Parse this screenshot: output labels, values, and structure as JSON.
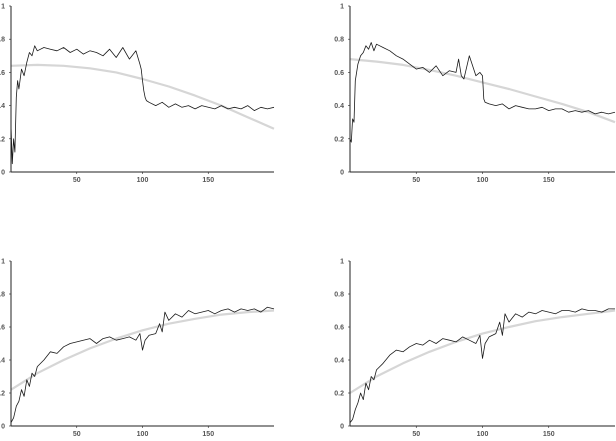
{
  "colors": {
    "series": "#1a1a1a",
    "trend": "#d6d6d6",
    "axis": "#222222",
    "tick_text": "#555555"
  },
  "chart_data": [
    {
      "type": "line",
      "x_range": [
        0,
        200
      ],
      "ylim": [
        0,
        1
      ],
      "xticks": [
        50,
        100,
        150
      ],
      "xtick_labels": [
        "50",
        "100",
        "150"
      ],
      "yticks": [
        0,
        0.2,
        0.4,
        0.6,
        0.8,
        1
      ],
      "ytick_labels": [
        "0",
        "0.2",
        "0.4",
        "0.6",
        "0.8",
        "1"
      ],
      "grid": false,
      "series": [
        {
          "role": "observed",
          "x": [
            0,
            1,
            2,
            3,
            4,
            5,
            6,
            8,
            10,
            12,
            14,
            16,
            18,
            20,
            25,
            30,
            35,
            40,
            45,
            50,
            55,
            60,
            65,
            70,
            75,
            80,
            85,
            90,
            95,
            98,
            99,
            100,
            101,
            102,
            103,
            105,
            110,
            115,
            120,
            125,
            130,
            135,
            140,
            145,
            150,
            155,
            160,
            165,
            170,
            175,
            180,
            185,
            190,
            195,
            200
          ],
          "y": [
            0.28,
            0.05,
            0.2,
            0.12,
            0.45,
            0.55,
            0.5,
            0.62,
            0.58,
            0.66,
            0.72,
            0.7,
            0.76,
            0.73,
            0.75,
            0.74,
            0.73,
            0.75,
            0.72,
            0.74,
            0.71,
            0.73,
            0.72,
            0.7,
            0.74,
            0.69,
            0.75,
            0.68,
            0.73,
            0.65,
            0.62,
            0.55,
            0.49,
            0.45,
            0.43,
            0.42,
            0.4,
            0.42,
            0.39,
            0.41,
            0.39,
            0.4,
            0.38,
            0.4,
            0.39,
            0.38,
            0.4,
            0.38,
            0.39,
            0.38,
            0.4,
            0.37,
            0.39,
            0.38,
            0.39
          ]
        },
        {
          "role": "trend",
          "x": [
            0,
            20,
            40,
            60,
            80,
            100,
            120,
            140,
            160,
            180,
            200
          ],
          "y": [
            0.64,
            0.645,
            0.64,
            0.625,
            0.6,
            0.56,
            0.515,
            0.46,
            0.4,
            0.33,
            0.26
          ]
        }
      ]
    },
    {
      "type": "line",
      "x_range": [
        0,
        200
      ],
      "ylim": [
        0,
        1
      ],
      "xticks": [
        50,
        100,
        150
      ],
      "xtick_labels": [
        "50",
        "100",
        "150"
      ],
      "yticks": [
        0,
        0.2,
        0.4,
        0.6,
        0.8,
        1
      ],
      "ytick_labels": [
        "0",
        "0.2",
        "0.4",
        "0.6",
        "0.8",
        "1"
      ],
      "grid": false,
      "series": [
        {
          "role": "observed",
          "x": [
            0,
            1,
            2,
            3,
            4,
            5,
            6,
            8,
            10,
            12,
            14,
            16,
            18,
            20,
            25,
            30,
            35,
            40,
            45,
            50,
            55,
            60,
            65,
            70,
            75,
            80,
            82,
            84,
            86,
            90,
            95,
            98,
            99,
            100,
            101,
            102,
            105,
            110,
            115,
            120,
            125,
            130,
            135,
            140,
            145,
            150,
            155,
            160,
            165,
            170,
            175,
            180,
            185,
            190,
            195,
            200
          ],
          "y": [
            0.2,
            0.18,
            0.32,
            0.3,
            0.55,
            0.6,
            0.65,
            0.7,
            0.72,
            0.76,
            0.74,
            0.78,
            0.73,
            0.77,
            0.75,
            0.73,
            0.7,
            0.68,
            0.65,
            0.62,
            0.63,
            0.6,
            0.64,
            0.58,
            0.61,
            0.6,
            0.68,
            0.58,
            0.56,
            0.7,
            0.58,
            0.6,
            0.59,
            0.58,
            0.44,
            0.42,
            0.41,
            0.4,
            0.41,
            0.38,
            0.4,
            0.39,
            0.38,
            0.38,
            0.39,
            0.37,
            0.38,
            0.38,
            0.36,
            0.37,
            0.36,
            0.37,
            0.35,
            0.36,
            0.35,
            0.36
          ]
        },
        {
          "role": "trend",
          "x": [
            0,
            20,
            40,
            60,
            80,
            100,
            120,
            140,
            160,
            180,
            200
          ],
          "y": [
            0.68,
            0.665,
            0.645,
            0.615,
            0.58,
            0.54,
            0.5,
            0.455,
            0.41,
            0.36,
            0.3
          ]
        }
      ]
    },
    {
      "type": "line",
      "x_range": [
        0,
        200
      ],
      "ylim": [
        0,
        1
      ],
      "xticks": [
        50,
        100,
        150
      ],
      "xtick_labels": [
        "50",
        "100",
        "150"
      ],
      "yticks": [
        0,
        0.2,
        0.4,
        0.6,
        0.8,
        1
      ],
      "ytick_labels": [
        "0",
        "0.2",
        "0.4",
        "0.6",
        "0.8",
        "1"
      ],
      "grid": false,
      "series": [
        {
          "role": "observed",
          "x": [
            0,
            2,
            4,
            6,
            8,
            10,
            12,
            14,
            16,
            18,
            20,
            25,
            30,
            35,
            40,
            45,
            50,
            55,
            60,
            65,
            70,
            75,
            80,
            85,
            90,
            95,
            98,
            100,
            102,
            105,
            110,
            113,
            115,
            117,
            120,
            125,
            130,
            135,
            140,
            145,
            150,
            155,
            160,
            165,
            170,
            175,
            180,
            185,
            190,
            195,
            200
          ],
          "y": [
            0.02,
            0.05,
            0.12,
            0.15,
            0.22,
            0.18,
            0.28,
            0.24,
            0.32,
            0.3,
            0.36,
            0.4,
            0.45,
            0.44,
            0.48,
            0.5,
            0.51,
            0.52,
            0.53,
            0.5,
            0.53,
            0.54,
            0.52,
            0.53,
            0.54,
            0.52,
            0.56,
            0.46,
            0.52,
            0.55,
            0.56,
            0.62,
            0.57,
            0.69,
            0.64,
            0.68,
            0.66,
            0.7,
            0.68,
            0.69,
            0.7,
            0.68,
            0.7,
            0.71,
            0.69,
            0.71,
            0.7,
            0.71,
            0.69,
            0.72,
            0.71
          ]
        },
        {
          "role": "trend",
          "x": [
            0,
            20,
            40,
            60,
            80,
            100,
            120,
            140,
            160,
            180,
            200
          ],
          "y": [
            0.22,
            0.32,
            0.4,
            0.47,
            0.53,
            0.58,
            0.62,
            0.65,
            0.675,
            0.69,
            0.7
          ]
        }
      ]
    },
    {
      "type": "line",
      "x_range": [
        0,
        200
      ],
      "ylim": [
        0,
        1
      ],
      "xticks": [
        50,
        100,
        150
      ],
      "xtick_labels": [
        "50",
        "100",
        "150"
      ],
      "yticks": [
        0,
        0.2,
        0.4,
        0.6,
        0.8,
        1
      ],
      "ytick_labels": [
        "0",
        "0.2",
        "0.4",
        "0.6",
        "0.8",
        "1"
      ],
      "grid": false,
      "series": [
        {
          "role": "observed",
          "x": [
            0,
            2,
            4,
            6,
            8,
            10,
            12,
            14,
            16,
            18,
            20,
            25,
            30,
            35,
            40,
            45,
            50,
            55,
            60,
            65,
            70,
            75,
            80,
            85,
            90,
            95,
            98,
            100,
            102,
            105,
            110,
            113,
            115,
            117,
            120,
            125,
            130,
            135,
            140,
            145,
            150,
            155,
            160,
            165,
            170,
            175,
            180,
            185,
            190,
            195,
            200
          ],
          "y": [
            0.02,
            0.04,
            0.1,
            0.14,
            0.2,
            0.16,
            0.26,
            0.22,
            0.3,
            0.28,
            0.34,
            0.38,
            0.43,
            0.46,
            0.45,
            0.48,
            0.5,
            0.49,
            0.52,
            0.5,
            0.53,
            0.52,
            0.51,
            0.54,
            0.52,
            0.5,
            0.55,
            0.41,
            0.5,
            0.54,
            0.56,
            0.63,
            0.55,
            0.68,
            0.63,
            0.68,
            0.66,
            0.69,
            0.68,
            0.7,
            0.69,
            0.68,
            0.7,
            0.7,
            0.69,
            0.71,
            0.7,
            0.7,
            0.69,
            0.71,
            0.71
          ]
        },
        {
          "role": "trend",
          "x": [
            0,
            20,
            40,
            60,
            80,
            100,
            120,
            140,
            160,
            180,
            200
          ],
          "y": [
            0.2,
            0.3,
            0.38,
            0.45,
            0.51,
            0.56,
            0.6,
            0.635,
            0.66,
            0.68,
            0.7
          ]
        }
      ]
    }
  ]
}
